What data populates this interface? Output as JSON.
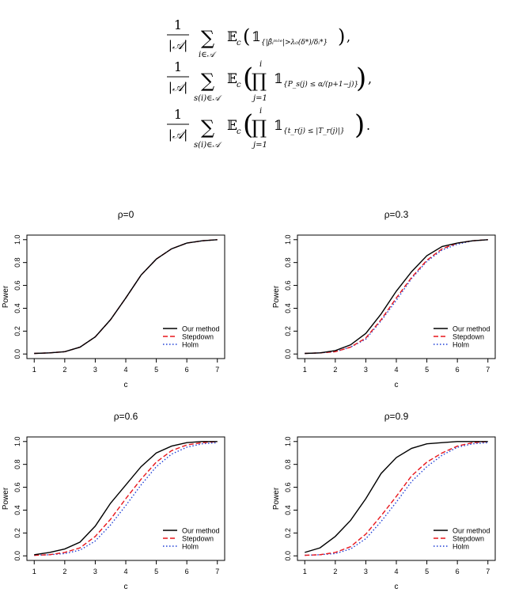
{
  "equations": [
    {
      "fraction_num": "1",
      "fraction_den": "|𝒜|",
      "sum_symbol": "∑",
      "sum_index": "i∈𝒜",
      "expectation": "𝔼",
      "expectation_sub": "c",
      "indicator": "𝟙",
      "indicator_sub": "{|β̂ᵢᵐˡᵉ|>λ₀(δ*)/δᵢ*}",
      "product_symbol": "",
      "product_top": "",
      "product_bottom": "",
      "trailing": ","
    },
    {
      "fraction_num": "1",
      "fraction_den": "|𝒜|",
      "sum_symbol": "∑",
      "sum_index": "s(i)∈𝒜",
      "expectation": "𝔼",
      "expectation_sub": "c",
      "indicator": "𝟙",
      "indicator_sub": "{P_s(j) ≤ α/(p+1−j)}",
      "product_symbol": "∏",
      "product_top": "i",
      "product_bottom": "j=1",
      "trailing": ","
    },
    {
      "fraction_num": "1",
      "fraction_den": "|𝒜|",
      "sum_symbol": "∑",
      "sum_index": "s(i)∈𝒜",
      "expectation": "𝔼",
      "expectation_sub": "c",
      "indicator": "𝟙",
      "indicator_sub": "{t_r(j) ≤ |T_r(j)|}",
      "product_symbol": "∏",
      "product_top": "i",
      "product_bottom": "j=1",
      "trailing": "."
    }
  ],
  "chart_data": [
    {
      "type": "line",
      "title": "ρ=0",
      "xlabel": "c",
      "ylabel": "Power",
      "xlim": [
        1,
        7
      ],
      "ylim": [
        0,
        1
      ],
      "xticks": [
        "1",
        "2",
        "3",
        "4",
        "5",
        "6",
        "7"
      ],
      "yticks": [
        "0.0",
        "0.2",
        "0.4",
        "0.6",
        "0.8",
        "1.0"
      ],
      "legend_position": "bottom-right",
      "x": [
        1,
        1.5,
        2,
        2.5,
        3,
        3.5,
        4,
        4.5,
        5,
        5.5,
        6,
        6.5,
        7
      ],
      "series": [
        {
          "name": "Our method",
          "color": "#000000",
          "dash": "solid",
          "values": [
            0.005,
            0.01,
            0.02,
            0.06,
            0.15,
            0.3,
            0.49,
            0.69,
            0.83,
            0.92,
            0.97,
            0.99,
            1.0
          ]
        },
        {
          "name": "Stepdown",
          "color": "#e8161c",
          "dash": "dashed",
          "values": [
            0.005,
            0.01,
            0.02,
            0.06,
            0.15,
            0.3,
            0.49,
            0.69,
            0.83,
            0.92,
            0.97,
            0.99,
            1.0
          ]
        },
        {
          "name": "Holm",
          "color": "#1f3fd6",
          "dash": "dotted",
          "values": [
            0.005,
            0.01,
            0.02,
            0.06,
            0.15,
            0.3,
            0.49,
            0.69,
            0.83,
            0.92,
            0.97,
            0.99,
            1.0
          ]
        }
      ]
    },
    {
      "type": "line",
      "title": "ρ=0.3",
      "xlabel": "c",
      "ylabel": "Power",
      "xlim": [
        1,
        7
      ],
      "ylim": [
        0,
        1
      ],
      "xticks": [
        "1",
        "2",
        "3",
        "4",
        "5",
        "6",
        "7"
      ],
      "yticks": [
        "0.0",
        "0.2",
        "0.4",
        "0.6",
        "0.8",
        "1.0"
      ],
      "legend_position": "bottom-right",
      "x": [
        1,
        1.5,
        2,
        2.5,
        3,
        3.5,
        4,
        4.5,
        5,
        5.5,
        6,
        6.5,
        7
      ],
      "series": [
        {
          "name": "Our method",
          "color": "#000000",
          "dash": "solid",
          "values": [
            0.005,
            0.01,
            0.03,
            0.08,
            0.18,
            0.35,
            0.55,
            0.72,
            0.86,
            0.94,
            0.97,
            0.99,
            1.0
          ]
        },
        {
          "name": "Stepdown",
          "color": "#e8161c",
          "dash": "dashed",
          "values": [
            0.005,
            0.01,
            0.02,
            0.06,
            0.14,
            0.3,
            0.49,
            0.67,
            0.82,
            0.92,
            0.97,
            0.99,
            1.0
          ]
        },
        {
          "name": "Holm",
          "color": "#1f3fd6",
          "dash": "dotted",
          "values": [
            0.005,
            0.01,
            0.02,
            0.06,
            0.13,
            0.29,
            0.47,
            0.66,
            0.81,
            0.91,
            0.96,
            0.99,
            1.0
          ]
        }
      ]
    },
    {
      "type": "line",
      "title": "ρ=0.6",
      "xlabel": "c",
      "ylabel": "Power",
      "xlim": [
        1,
        7
      ],
      "ylim": [
        0,
        1
      ],
      "xticks": [
        "1",
        "2",
        "3",
        "4",
        "5",
        "6",
        "7"
      ],
      "yticks": [
        "0.0",
        "0.2",
        "0.4",
        "0.6",
        "0.8",
        "1.0"
      ],
      "legend_position": "bottom-right",
      "x": [
        1,
        1.5,
        2,
        2.5,
        3,
        3.5,
        4,
        4.5,
        5,
        5.5,
        6,
        6.5,
        7
      ],
      "series": [
        {
          "name": "Our method",
          "color": "#000000",
          "dash": "solid",
          "values": [
            0.01,
            0.03,
            0.06,
            0.12,
            0.26,
            0.46,
            0.62,
            0.78,
            0.9,
            0.96,
            0.99,
            1.0,
            1.0
          ]
        },
        {
          "name": "Stepdown",
          "color": "#e8161c",
          "dash": "dashed",
          "values": [
            0.005,
            0.01,
            0.03,
            0.07,
            0.17,
            0.32,
            0.5,
            0.67,
            0.82,
            0.92,
            0.97,
            0.99,
            1.0
          ]
        },
        {
          "name": "Holm",
          "color": "#1f3fd6",
          "dash": "dotted",
          "values": [
            0.005,
            0.01,
            0.02,
            0.05,
            0.13,
            0.27,
            0.44,
            0.62,
            0.78,
            0.89,
            0.95,
            0.98,
            0.99
          ]
        }
      ]
    },
    {
      "type": "line",
      "title": "ρ=0.9",
      "xlabel": "c",
      "ylabel": "Power",
      "xlim": [
        1,
        7
      ],
      "ylim": [
        0,
        1
      ],
      "xticks": [
        "1",
        "2",
        "3",
        "4",
        "5",
        "6",
        "7"
      ],
      "yticks": [
        "0.0",
        "0.2",
        "0.4",
        "0.6",
        "0.8",
        "1.0"
      ],
      "legend_position": "bottom-right",
      "x": [
        1,
        1.5,
        2,
        2.5,
        3,
        3.5,
        4,
        4.5,
        5,
        5.5,
        6,
        6.5,
        7
      ],
      "series": [
        {
          "name": "Our method",
          "color": "#000000",
          "dash": "solid",
          "values": [
            0.03,
            0.07,
            0.17,
            0.31,
            0.5,
            0.72,
            0.86,
            0.94,
            0.98,
            0.99,
            1.0,
            1.0,
            1.0
          ]
        },
        {
          "name": "Stepdown",
          "color": "#e8161c",
          "dash": "dashed",
          "values": [
            0.005,
            0.01,
            0.03,
            0.08,
            0.19,
            0.35,
            0.52,
            0.7,
            0.82,
            0.9,
            0.96,
            0.99,
            1.0
          ]
        },
        {
          "name": "Holm",
          "color": "#1f3fd6",
          "dash": "dotted",
          "values": [
            0.005,
            0.01,
            0.02,
            0.06,
            0.15,
            0.3,
            0.47,
            0.65,
            0.78,
            0.88,
            0.95,
            0.98,
            0.99
          ]
        }
      ]
    }
  ]
}
